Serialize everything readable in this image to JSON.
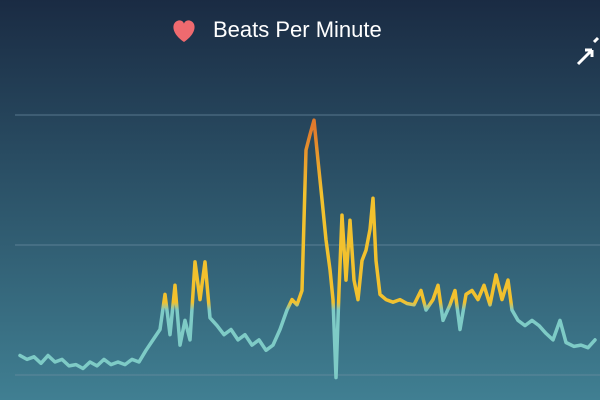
{
  "chart_data": {
    "type": "line",
    "title": "Beats Per Minute",
    "x": [
      20,
      27,
      34,
      41,
      48,
      55,
      62,
      69,
      76,
      83,
      90,
      97,
      104,
      111,
      118,
      125,
      132,
      139,
      146,
      153,
      160,
      165,
      170,
      175,
      180,
      185,
      190,
      195,
      200,
      205,
      210,
      217,
      224,
      231,
      238,
      245,
      252,
      259,
      266,
      273,
      280,
      287,
      292,
      297,
      302,
      306,
      310,
      314,
      318,
      322,
      326,
      330,
      333,
      336,
      339,
      342,
      346,
      350,
      354,
      358,
      362,
      366,
      370,
      373,
      376,
      380,
      386,
      393,
      400,
      407,
      414,
      421,
      426,
      433,
      438,
      443,
      450,
      455,
      460,
      466,
      472,
      478,
      484,
      490,
      496,
      502,
      508,
      512,
      518,
      525,
      532,
      539,
      546,
      553,
      560,
      566,
      574,
      581,
      588,
      595
    ],
    "values": [
      0.15,
      0.12,
      0.14,
      0.09,
      0.15,
      0.1,
      0.12,
      0.07,
      0.08,
      0.05,
      0.1,
      0.07,
      0.12,
      0.08,
      0.1,
      0.08,
      0.12,
      0.1,
      0.19,
      0.27,
      0.35,
      0.62,
      0.31,
      0.69,
      0.23,
      0.42,
      0.27,
      0.87,
      0.58,
      0.87,
      0.44,
      0.38,
      0.31,
      0.35,
      0.27,
      0.31,
      0.23,
      0.27,
      0.19,
      0.23,
      0.35,
      0.5,
      0.58,
      0.54,
      0.65,
      1.73,
      1.85,
      1.96,
      1.65,
      1.35,
      1.04,
      0.81,
      0.58,
      -0.02,
      0.65,
      1.23,
      0.73,
      1.19,
      0.73,
      0.58,
      0.88,
      0.96,
      1.12,
      1.36,
      0.88,
      0.62,
      0.58,
      0.56,
      0.58,
      0.55,
      0.54,
      0.65,
      0.5,
      0.58,
      0.69,
      0.42,
      0.54,
      0.65,
      0.35,
      0.62,
      0.65,
      0.58,
      0.69,
      0.54,
      0.77,
      0.58,
      0.73,
      0.5,
      0.42,
      0.38,
      0.42,
      0.38,
      0.32,
      0.27,
      0.42,
      0.25,
      0.22,
      0.23,
      0.21,
      0.27
    ],
    "xlim": [
      0,
      600
    ],
    "ylim": [
      -0.19,
      2.2
    ],
    "yticks": [
      0,
      1,
      2
    ],
    "grid": true,
    "color_stops": [
      {
        "value": 0.5,
        "color": "#7ecbc6"
      },
      {
        "value": 0.56,
        "color": "#f2c12e"
      },
      {
        "value": 1.4,
        "color": "#f2c12e"
      },
      {
        "value": 1.9,
        "color": "#e07a2c"
      }
    ]
  }
}
